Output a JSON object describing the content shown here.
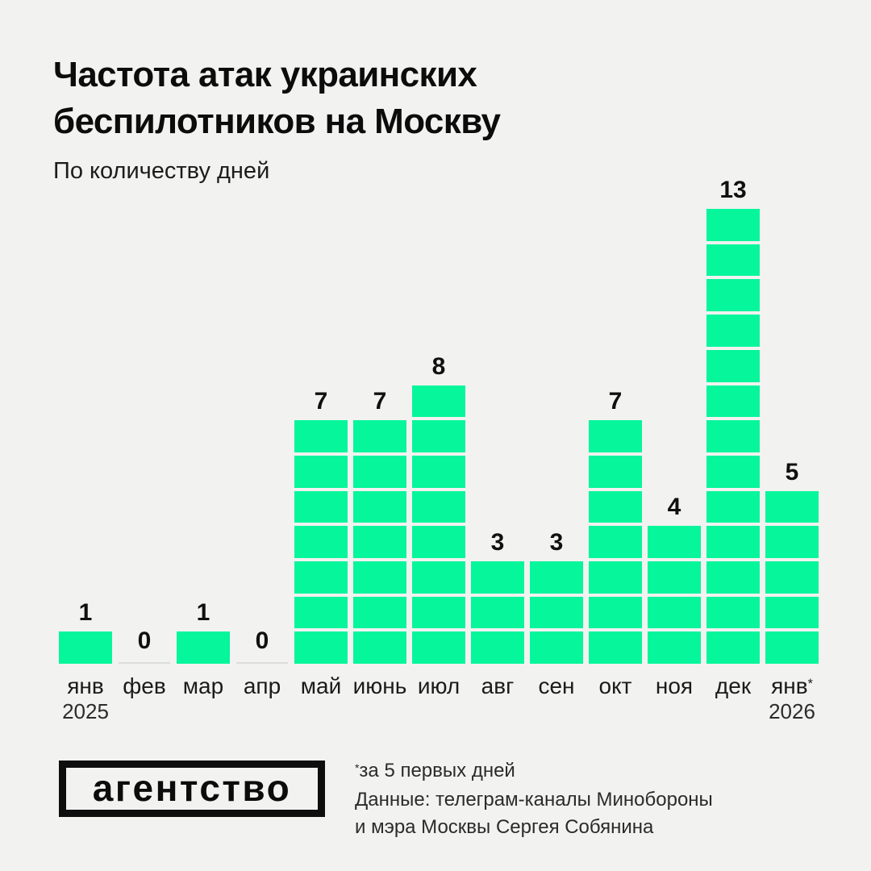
{
  "header": {
    "title_lines": [
      "Частота атак украинских",
      "беспилотников на Москву"
    ],
    "subtitle": "По количеству дней"
  },
  "chart_data": {
    "type": "bar",
    "title": "Частота атак украинских беспилотников на Москву",
    "subtitle": "По количеству дней",
    "categories": [
      "янв",
      "фев",
      "мар",
      "апр",
      "май",
      "июнь",
      "июл",
      "авг",
      "сен",
      "окт",
      "ноя",
      "дек",
      "янв*"
    ],
    "values": [
      1,
      0,
      1,
      0,
      7,
      7,
      8,
      3,
      3,
      7,
      4,
      13,
      5
    ],
    "year_labels": [
      {
        "index": 0,
        "label": "2025"
      },
      {
        "index": 12,
        "label": "2026"
      }
    ],
    "value_labels_shown": true,
    "segmented_bars": true,
    "ylim": [
      0,
      13
    ],
    "legend": "none",
    "grid": "off"
  },
  "colors": {
    "background": "#F2F2F1",
    "bar_green": "#05F69B",
    "zero_baseline": "#dcdcda",
    "text_primary": "#0c0c0c"
  },
  "footer": {
    "logo_text": "агентство",
    "footnote_lines": [
      "*за 5 первых дней",
      "Данные: телеграм-каналы Минобороны",
      "и мэра Москвы Сергея Собянина"
    ]
  }
}
